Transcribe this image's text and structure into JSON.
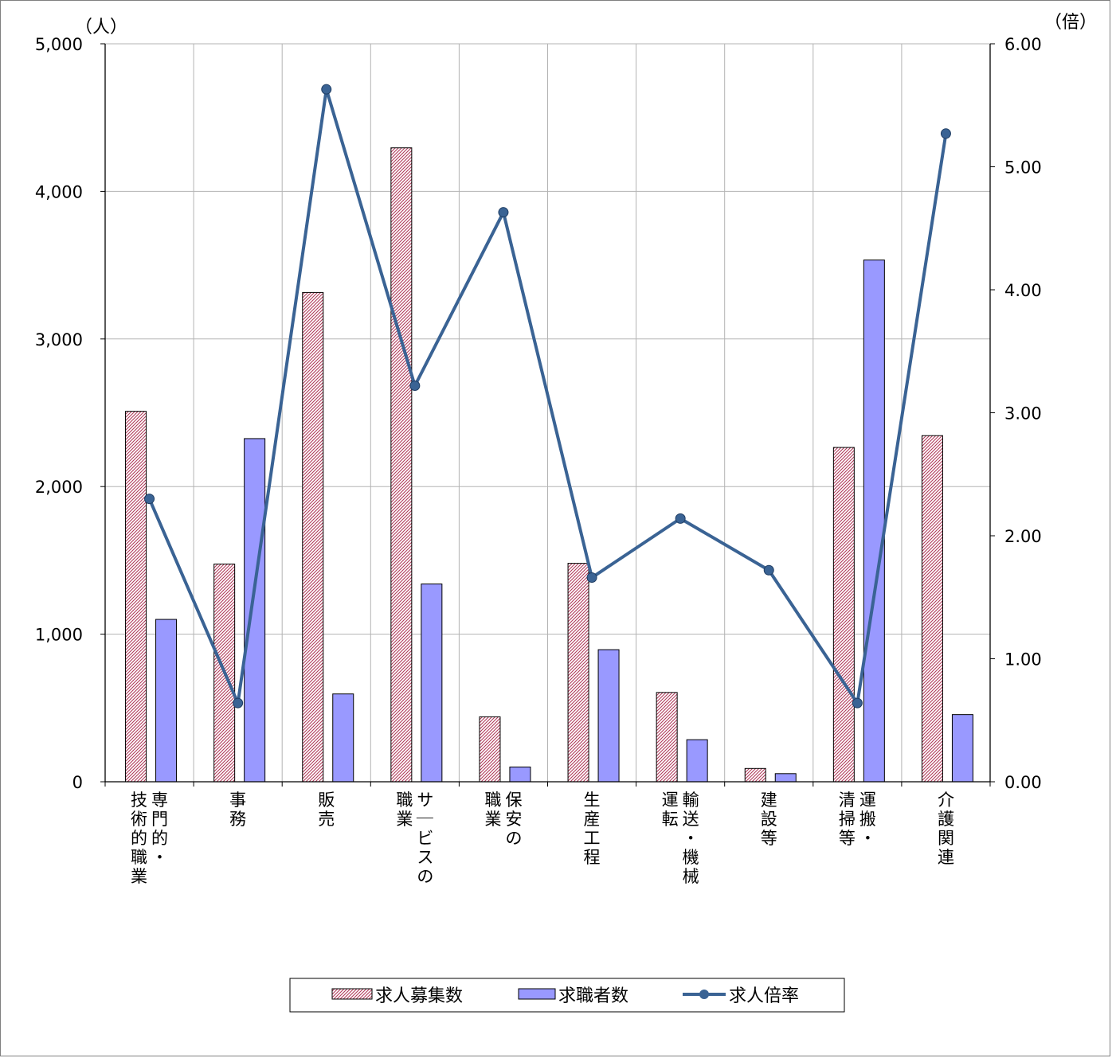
{
  "chart_data": {
    "type": "bar",
    "categories": [
      [
        "専門的・",
        "技術的職業"
      ],
      [
        "事務"
      ],
      [
        "販売"
      ],
      [
        "サービスの",
        "職業"
      ],
      [
        "保安の",
        "職業"
      ],
      [
        "生産工程"
      ],
      [
        "輸送・機械",
        "運転"
      ],
      [
        "建設等"
      ],
      [
        "運搬・",
        "清掃等"
      ],
      [
        "介護関連"
      ]
    ],
    "series": [
      {
        "name": "求人募集数",
        "kind": "bar",
        "axis": "left",
        "values": [
          2510,
          1475,
          3315,
          4295,
          440,
          1480,
          605,
          90,
          2265,
          2345
        ]
      },
      {
        "name": "求職者数",
        "kind": "bar",
        "axis": "left",
        "values": [
          1100,
          2325,
          595,
          1340,
          100,
          895,
          285,
          55,
          3535,
          455
        ]
      },
      {
        "name": "求人倍率",
        "kind": "line",
        "axis": "right",
        "values": [
          2.3,
          0.64,
          5.63,
          3.22,
          4.63,
          1.66,
          2.14,
          1.72,
          0.64,
          5.27
        ]
      }
    ],
    "left_axis": {
      "unit": "（人）",
      "ylim": [
        0,
        5000
      ],
      "ticks": [
        "0",
        "1,000",
        "2,000",
        "3,000",
        "4,000",
        "5,000"
      ]
    },
    "right_axis": {
      "unit": "（倍）",
      "ylim": [
        0,
        6
      ],
      "ticks": [
        "0.00",
        "1.00",
        "2.00",
        "3.00",
        "4.00",
        "5.00",
        "6.00"
      ]
    },
    "grid": true,
    "legend_position": "bottom",
    "colors": {
      "bar1_fill": "#ffffff",
      "bar1_hatch": "#b03a5a",
      "bar2": "#9999ff",
      "line": "#3a6394",
      "grid": "#b3b3b3"
    }
  }
}
